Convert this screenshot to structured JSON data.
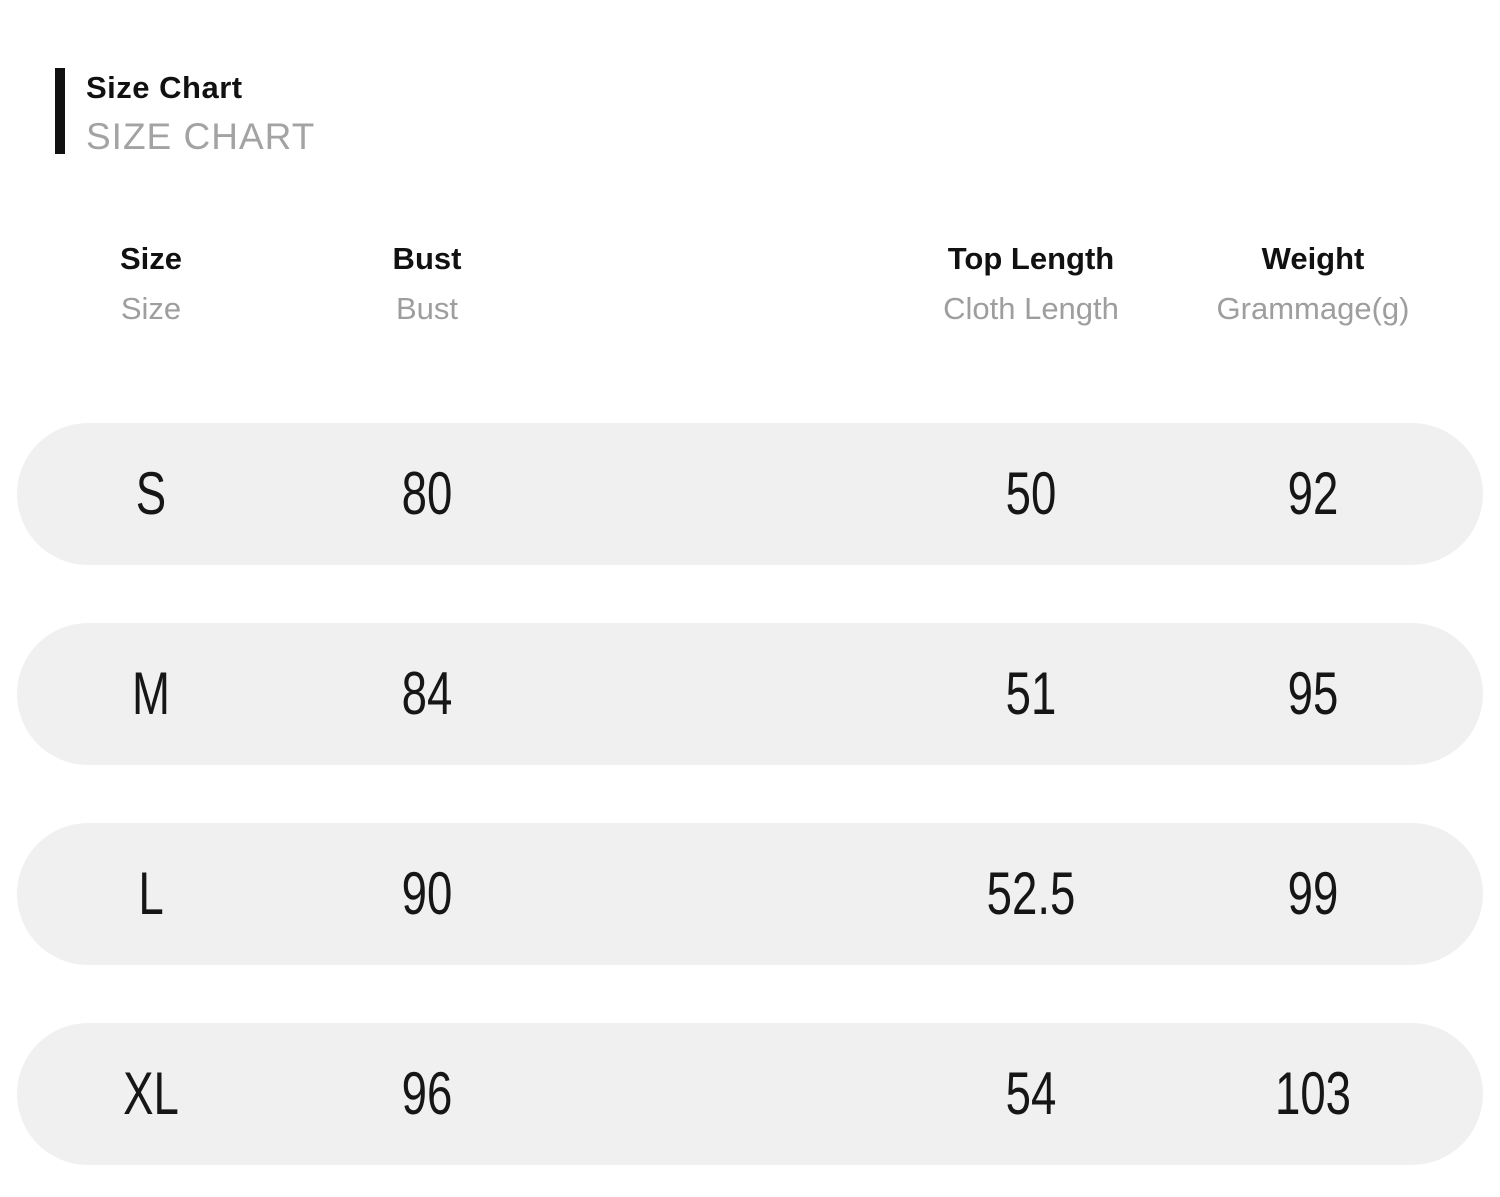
{
  "title": {
    "primary": "Size Chart",
    "secondary": "SIZE CHART"
  },
  "colors": {
    "page_background": "#ffffff",
    "accent_bar": "#111111",
    "heading_text": "#111111",
    "muted_text": "#9e9e9e",
    "subtitle_text": "#a3a3a3",
    "row_background": "#f0f0f0",
    "value_text": "#161616"
  },
  "chart_data": {
    "type": "table",
    "title": "Size Chart",
    "subtitle": "SIZE CHART",
    "columns": [
      {
        "label": "Size",
        "sublabel": "Size"
      },
      {
        "label": "Bust",
        "sublabel": "Bust"
      },
      {
        "label": "Top Length",
        "sublabel": "Cloth Length"
      },
      {
        "label": "Weight",
        "sublabel": "Grammage(g)"
      }
    ],
    "rows": [
      {
        "size": "S",
        "bust": "80",
        "top_length": "50",
        "weight": "92"
      },
      {
        "size": "M",
        "bust": "84",
        "top_length": "51",
        "weight": "95"
      },
      {
        "size": "L",
        "bust": "90",
        "top_length": "52.5",
        "weight": "99"
      },
      {
        "size": "XL",
        "bust": "96",
        "top_length": "54",
        "weight": "103"
      }
    ]
  }
}
